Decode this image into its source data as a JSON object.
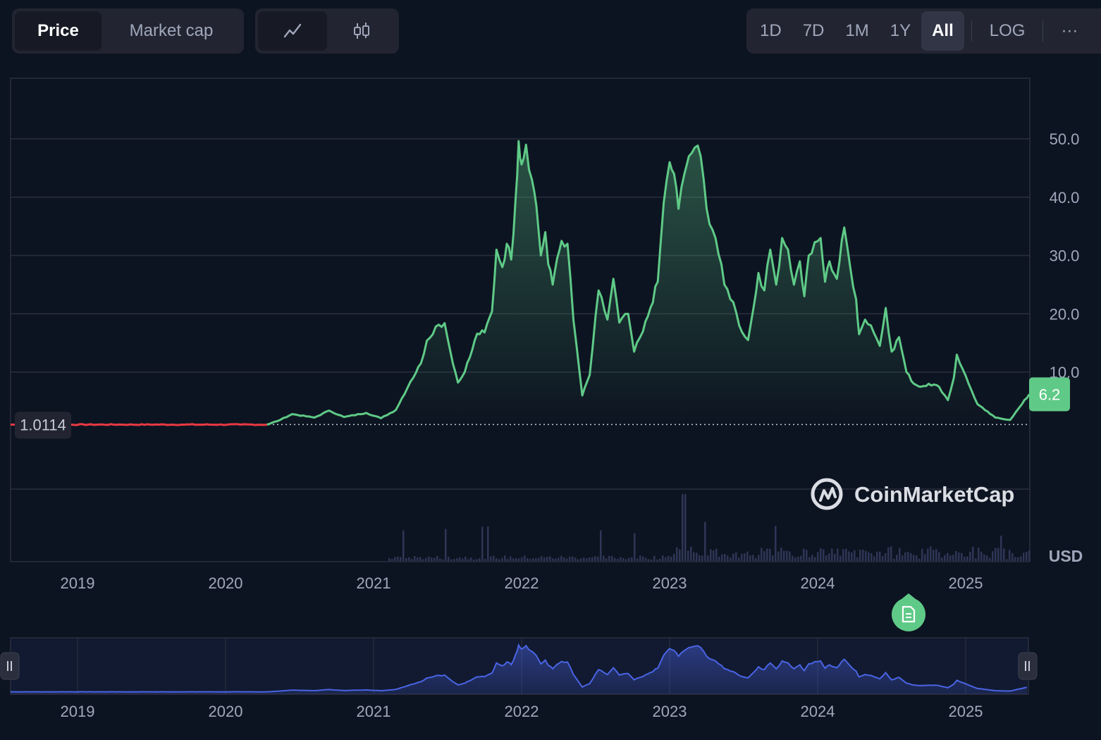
{
  "controls": {
    "metric_tabs": [
      {
        "label": "Price",
        "active": true
      },
      {
        "label": "Market cap",
        "active": false
      }
    ],
    "chart_type_buttons": [
      {
        "icon": "line-chart-icon",
        "active": true
      },
      {
        "icon": "candlestick-chart-icon",
        "active": false
      }
    ],
    "ranges": [
      {
        "label": "1D",
        "active": false
      },
      {
        "label": "7D",
        "active": false
      },
      {
        "label": "1M",
        "active": false
      },
      {
        "label": "1Y",
        "active": false
      },
      {
        "label": "All",
        "active": true
      }
    ],
    "log_label": "LOG",
    "more_label": "···"
  },
  "colors": {
    "background": "#0d1421",
    "up_line": "#5fca87",
    "down_line": "#ea3943",
    "navigator_line": "#4a64e5",
    "volume": "#2e3656",
    "current_badge": "#5fca87"
  },
  "watermark": "CoinMarketCap",
  "currency_label": "USD",
  "current_price_label": "6.2",
  "reference_price_label": "1.0114",
  "event_marker_icon": "document-icon",
  "chart_data": {
    "type": "line",
    "title": "",
    "xlabel": "",
    "ylabel": "",
    "x_ticks": [
      "2019",
      "2020",
      "2021",
      "2022",
      "2023",
      "2024",
      "2025"
    ],
    "y_ticks": [
      "10.0",
      "20.0",
      "30.0",
      "40.0",
      "50.0"
    ],
    "ylim": [
      -2,
      58
    ],
    "reference_line": 1.0114,
    "series": [
      {
        "values": [
          [
            2018.55,
            1.0
          ],
          [
            2018.9,
            1.0
          ],
          [
            2019.3,
            1.0
          ],
          [
            2019.7,
            1.0
          ],
          [
            2020.1,
            1.0
          ],
          [
            2020.28,
            1.0
          ],
          [
            2020.35,
            1.6
          ],
          [
            2020.45,
            2.8
          ],
          [
            2020.6,
            2.2
          ],
          [
            2020.7,
            3.4
          ],
          [
            2020.8,
            2.3
          ],
          [
            2020.95,
            3.0
          ],
          [
            2021.05,
            2.1
          ],
          [
            2021.15,
            3.5
          ],
          [
            2021.25,
            8.4
          ],
          [
            2021.32,
            11.5
          ],
          [
            2021.36,
            15.4
          ],
          [
            2021.42,
            17.8
          ],
          [
            2021.48,
            18.4
          ],
          [
            2021.52,
            13.4
          ],
          [
            2021.57,
            8.2
          ],
          [
            2021.6,
            9.3
          ],
          [
            2021.65,
            12.5
          ],
          [
            2021.7,
            16.6
          ],
          [
            2021.75,
            16.8
          ],
          [
            2021.8,
            20.4
          ],
          [
            2021.83,
            31.0
          ],
          [
            2021.87,
            28.0
          ],
          [
            2021.9,
            32.0
          ],
          [
            2021.93,
            29.3
          ],
          [
            2021.96,
            40.0
          ],
          [
            2021.98,
            49.6
          ],
          [
            2022.0,
            45.6
          ],
          [
            2022.03,
            49.0
          ],
          [
            2022.07,
            43.0
          ],
          [
            2022.1,
            38.5
          ],
          [
            2022.13,
            30.0
          ],
          [
            2022.16,
            34.0
          ],
          [
            2022.18,
            28.5
          ],
          [
            2022.21,
            25.0
          ],
          [
            2022.24,
            29.5
          ],
          [
            2022.27,
            32.5
          ],
          [
            2022.31,
            32.0
          ],
          [
            2022.35,
            19.0
          ],
          [
            2022.41,
            6.0
          ],
          [
            2022.46,
            9.5
          ],
          [
            2022.52,
            24.0
          ],
          [
            2022.58,
            19.0
          ],
          [
            2022.62,
            26.0
          ],
          [
            2022.66,
            18.5
          ],
          [
            2022.72,
            20.0
          ],
          [
            2022.76,
            13.5
          ],
          [
            2022.82,
            17.0
          ],
          [
            2022.87,
            21.0
          ],
          [
            2022.92,
            25.5
          ],
          [
            2022.96,
            39.0
          ],
          [
            2023.0,
            46.0
          ],
          [
            2023.03,
            44.0
          ],
          [
            2023.06,
            38.0
          ],
          [
            2023.1,
            44.0
          ],
          [
            2023.13,
            47.0
          ],
          [
            2023.17,
            48.5
          ],
          [
            2023.21,
            47.0
          ],
          [
            2023.25,
            38.0
          ],
          [
            2023.31,
            33.0
          ],
          [
            2023.37,
            25.0
          ],
          [
            2023.43,
            22.0
          ],
          [
            2023.47,
            18.0
          ],
          [
            2023.53,
            15.5
          ],
          [
            2023.57,
            21.5
          ],
          [
            2023.6,
            27.0
          ],
          [
            2023.64,
            24.0
          ],
          [
            2023.68,
            31.0
          ],
          [
            2023.72,
            25.0
          ],
          [
            2023.76,
            33.0
          ],
          [
            2023.8,
            31.0
          ],
          [
            2023.84,
            25.0
          ],
          [
            2023.88,
            29.0
          ],
          [
            2023.91,
            23.0
          ],
          [
            2023.94,
            30.0
          ],
          [
            2024.02,
            33.0
          ],
          [
            2024.05,
            25.5
          ],
          [
            2024.08,
            29.0
          ],
          [
            2024.13,
            26.0
          ],
          [
            2024.18,
            34.8
          ],
          [
            2024.22,
            28.0
          ],
          [
            2024.26,
            22.5
          ],
          [
            2024.28,
            16.5
          ],
          [
            2024.32,
            19.0
          ],
          [
            2024.36,
            18.0
          ],
          [
            2024.42,
            14.5
          ],
          [
            2024.46,
            21.0
          ],
          [
            2024.5,
            13.5
          ],
          [
            2024.55,
            16.0
          ],
          [
            2024.6,
            10.0
          ],
          [
            2024.65,
            8.0
          ],
          [
            2024.7,
            7.5
          ],
          [
            2024.75,
            8.0
          ],
          [
            2024.82,
            7.5
          ],
          [
            2024.88,
            5.2
          ],
          [
            2024.92,
            9.0
          ],
          [
            2024.94,
            13.0
          ],
          [
            2024.98,
            10.5
          ],
          [
            2025.02,
            8.0
          ],
          [
            2025.08,
            4.5
          ],
          [
            2025.13,
            3.5
          ],
          [
            2025.2,
            2.2
          ],
          [
            2025.3,
            1.8
          ],
          [
            2025.38,
            4.5
          ],
          [
            2025.43,
            6.2
          ]
        ]
      }
    ]
  },
  "navigator": {
    "x_ticks": [
      "2019",
      "2020",
      "2021",
      "2022",
      "2023",
      "2024",
      "2025"
    ],
    "left_handle_icon": "drag-handle-icon",
    "right_handle_icon": "drag-handle-icon"
  }
}
